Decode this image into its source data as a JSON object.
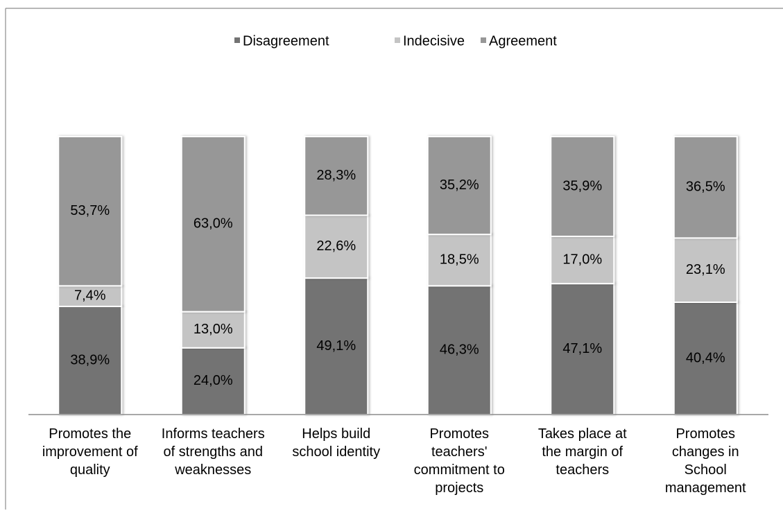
{
  "chart_data": {
    "type": "bar",
    "stacked": true,
    "categories": [
      [
        "Promotes the",
        "improvement of",
        "quality"
      ],
      [
        "Informs teachers",
        "of strengths and",
        "weaknesses"
      ],
      [
        "Helps build",
        "school identity"
      ],
      [
        "Promotes",
        "teachers'",
        "commitment to",
        "projects"
      ],
      [
        "Takes place at",
        "the margin of",
        "teachers"
      ],
      [
        "Promotes",
        "changes in",
        "School",
        "management"
      ]
    ],
    "series": [
      {
        "name": "Disagreement",
        "color": "#737373",
        "values": [
          38.9,
          24.0,
          49.1,
          46.3,
          47.1,
          40.4
        ],
        "labels": [
          "38,9%",
          "24,0%",
          "49,1%",
          "46,3%",
          "47,1%",
          "40,4%"
        ]
      },
      {
        "name": "Indecisive",
        "color": "#c4c4c4",
        "values": [
          7.4,
          13.0,
          22.6,
          18.5,
          17.0,
          23.1
        ],
        "labels": [
          "7,4%",
          "13,0%",
          "22,6%",
          "18,5%",
          "17,0%",
          "23,1%"
        ]
      },
      {
        "name": "Agreement",
        "color": "#979797",
        "values": [
          53.7,
          63.0,
          28.3,
          35.2,
          35.9,
          36.5
        ],
        "labels": [
          "53,7%",
          "63,0%",
          "28,3%",
          "35,2%",
          "35,9%",
          "36,5%"
        ]
      }
    ],
    "ylim": [
      0,
      100
    ],
    "legend_position": "top",
    "grid": false,
    "title": "",
    "xlabel": "",
    "ylabel": ""
  }
}
